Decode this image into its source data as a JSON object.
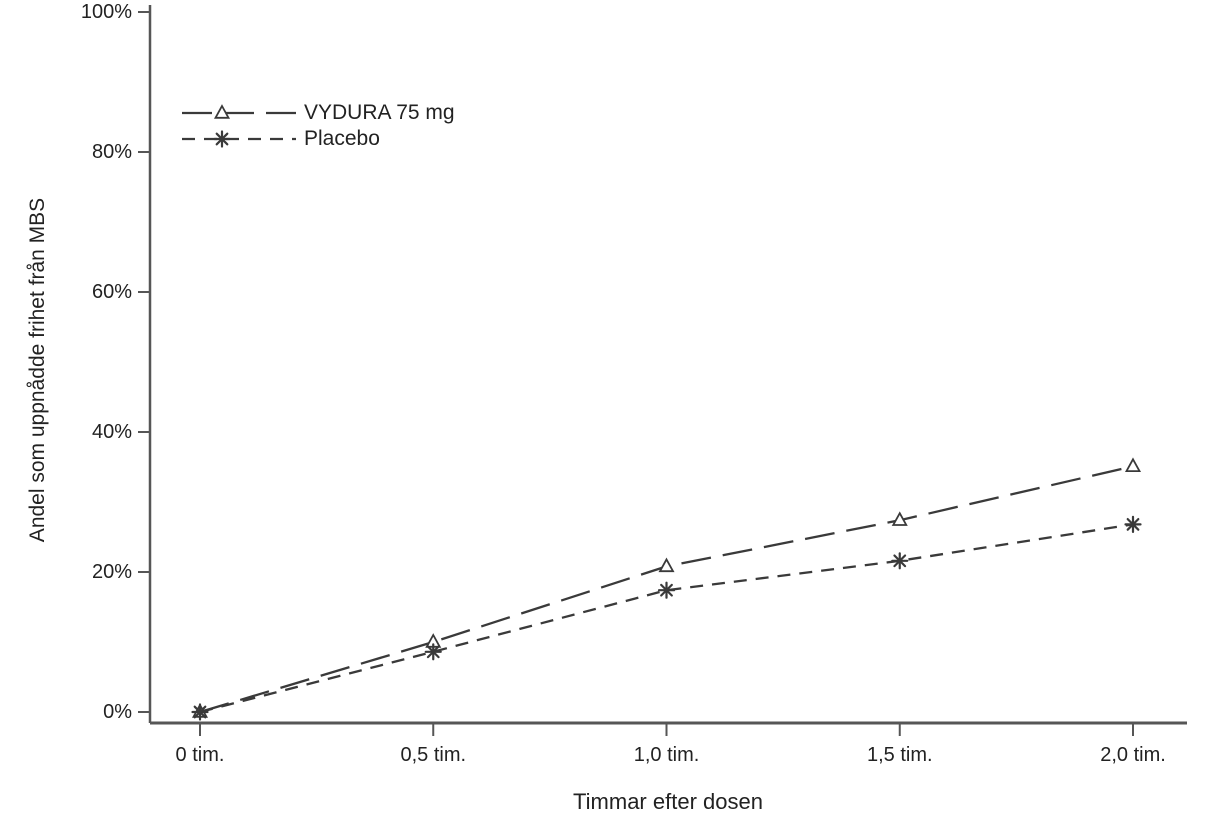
{
  "figure": {
    "background": "#ffffff"
  },
  "chart_data": {
    "type": "line",
    "title": "",
    "xlabel": "Timmar efter dosen",
    "ylabel": "Andel som uppnådde frihet från MBS",
    "x": [
      0,
      0.5,
      1.0,
      1.5,
      2.0
    ],
    "x_tick_labels": [
      "0 tim.",
      "0,5 tim.",
      "1,0 tim.",
      "1,5 tim.",
      "2,0 tim."
    ],
    "y_ticks": [
      0,
      20,
      40,
      60,
      80,
      100
    ],
    "y_tick_labels": [
      "0%",
      "20%",
      "40%",
      "60%",
      "80%",
      "100%"
    ],
    "xlim": [
      0,
      2
    ],
    "ylim": [
      0,
      100
    ],
    "grid": false,
    "legend_position": "upper-left-inside",
    "axis_color": "#565656",
    "text_color": "#222222",
    "series": [
      {
        "name": "VYDURA 75 mg",
        "values": [
          0,
          10.0,
          20.8,
          27.4,
          35.1
        ],
        "marker": "triangle",
        "line_style": "long-dash",
        "color": "#3a3a3a"
      },
      {
        "name": "Placebo",
        "values": [
          0,
          8.6,
          17.4,
          21.6,
          26.8
        ],
        "marker": "asterisk",
        "line_style": "short-dash",
        "color": "#3a3a3a"
      }
    ]
  }
}
